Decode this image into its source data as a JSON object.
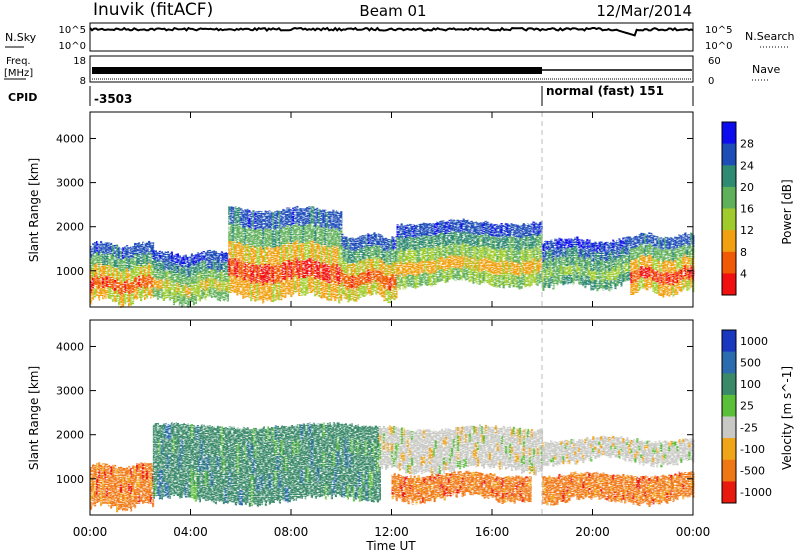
{
  "header": {
    "station": "Inuvik (fitACF)",
    "beam": "Beam 01",
    "date": "12/Mar/2014"
  },
  "strips": {
    "nsky_label": "N.Sky",
    "nsearch_label": "N.Search",
    "noise_ticks": [
      "10^5",
      "10^0"
    ],
    "freq_label_1": "Freq.",
    "freq_label_2": "[MHz]",
    "freq_ticks": [
      "18",
      "8"
    ],
    "nave_label": "Nave",
    "nave_ticks": [
      "60",
      "0"
    ],
    "cpid_label": "CPID",
    "cpid_entries": [
      {
        "text": "-3503",
        "start": "00:00",
        "end": "18:00"
      },
      {
        "text": "normal (fast) 151",
        "start": "18:00",
        "end": "24:00"
      }
    ]
  },
  "x_axis": {
    "label": "Time UT",
    "ticks": [
      "00:00",
      "04:00",
      "08:00",
      "12:00",
      "16:00",
      "20:00",
      "00:00"
    ],
    "range_hours": [
      0,
      24
    ]
  },
  "chart_data": [
    {
      "type": "heatmap",
      "panel": "power",
      "ylabel": "Slant Range [km]",
      "y_ticks": [
        "4000",
        "3000",
        "2000",
        "1000"
      ],
      "ylim_km": [
        180,
        4600
      ],
      "colorbar_label": "Power [dB]",
      "colorbar_ticks": [
        "28",
        "24",
        "20",
        "16",
        "12",
        "8",
        "4"
      ],
      "colorbar_range": [
        0,
        32
      ],
      "colors": [
        "#0c0cee",
        "#1e4db8",
        "#2f8a72",
        "#5fb05a",
        "#9fcc2c",
        "#f0a010",
        "#f05a05",
        "#f01010"
      ],
      "bands": [
        {
          "x_start": 0.0,
          "x_end": 2.5,
          "y_low": 300,
          "y_high": 1600,
          "peak_db": 28
        },
        {
          "x_start": 2.5,
          "x_end": 5.5,
          "y_low": 300,
          "y_high": 1400,
          "peak_db": 20
        },
        {
          "x_start": 5.5,
          "x_end": 10.0,
          "y_low": 400,
          "y_high": 2400,
          "peak_db": 30
        },
        {
          "x_start": 10.0,
          "x_end": 12.2,
          "y_low": 400,
          "y_high": 1800,
          "peak_db": 28
        },
        {
          "x_start": 12.2,
          "x_end": 18.0,
          "y_low": 700,
          "y_high": 2100,
          "peak_db": 22
        },
        {
          "x_start": 18.0,
          "x_end": 21.5,
          "y_low": 650,
          "y_high": 1700,
          "peak_db": 16
        },
        {
          "x_start": 21.5,
          "x_end": 24.0,
          "y_low": 500,
          "y_high": 1800,
          "peak_db": 30
        }
      ]
    },
    {
      "type": "heatmap",
      "panel": "velocity",
      "ylabel": "Slant Range [km]",
      "y_ticks": [
        "4000",
        "3000",
        "2000",
        "1000"
      ],
      "ylim_km": [
        180,
        4600
      ],
      "colorbar_label": "Velocity [m s^-1]",
      "colorbar_ticks": [
        "1000",
        "500",
        "100",
        "25",
        "-25",
        "-100",
        "-500",
        "-1000"
      ],
      "colors": [
        "#1a37c0",
        "#2b6cae",
        "#3a8a6a",
        "#5cbf3a",
        "#c8c8c4",
        "#f0a418",
        "#f07814",
        "#e81a0e"
      ],
      "bands": [
        {
          "x_start": 0.0,
          "x_end": 2.5,
          "y_low": 350,
          "y_high": 1300,
          "velocity": -300
        },
        {
          "x_start": 2.5,
          "x_end": 11.5,
          "y_low": 500,
          "y_high": 2200,
          "velocity": 150
        },
        {
          "x_start": 11.5,
          "x_end": 18.0,
          "y_low": 1200,
          "y_high": 2150,
          "velocity": 0
        },
        {
          "x_start": 12.0,
          "x_end": 17.5,
          "y_low": 550,
          "y_high": 1100,
          "velocity": -200
        },
        {
          "x_start": 18.0,
          "x_end": 24.0,
          "y_low": 1400,
          "y_high": 1900,
          "velocity": 0
        },
        {
          "x_start": 18.0,
          "x_end": 24.0,
          "y_low": 500,
          "y_high": 1100,
          "velocity": -250
        }
      ]
    }
  ]
}
